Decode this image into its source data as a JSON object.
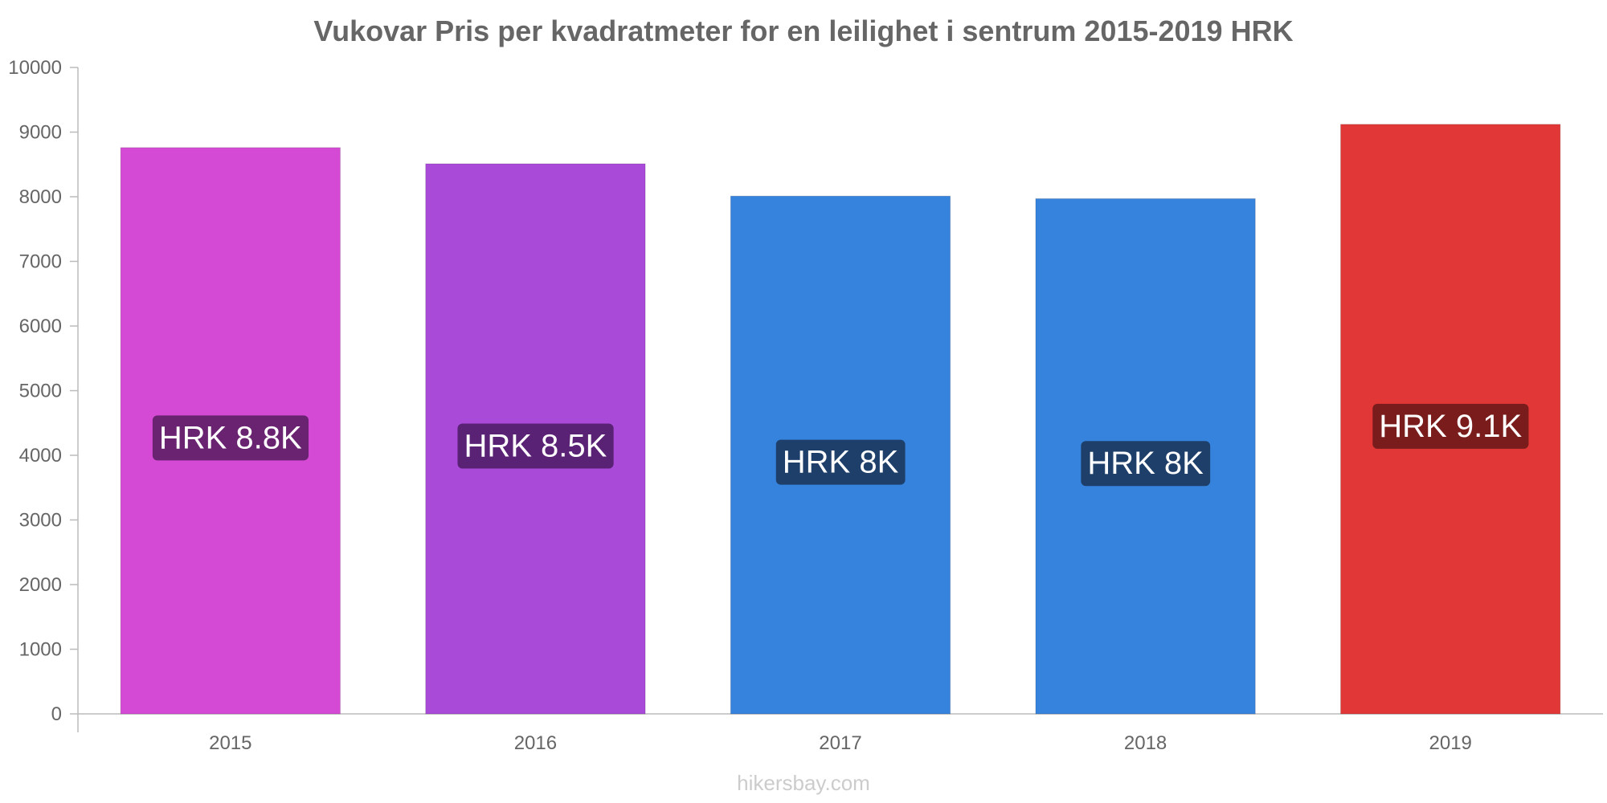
{
  "chart_data": {
    "type": "bar",
    "title": "Vukovar Pris per kvadratmeter for en leilighet i sentrum 2015-2019 HRK",
    "categories": [
      "2015",
      "2016",
      "2017",
      "2018",
      "2019"
    ],
    "values": [
      8760,
      8510,
      8010,
      7970,
      9120
    ],
    "data_labels": [
      "HRK 8.8K",
      "HRK 8.5K",
      "HRK 8K",
      "HRK 8K",
      "HRK 9.1K"
    ],
    "bar_colors": [
      "#d54ad5",
      "#a94ad9",
      "#3683de",
      "#3683de",
      "#e23737"
    ],
    "label_bg_colors": [
      "#6a2370",
      "#5a2275",
      "#1d3f6a",
      "#1d3f6a",
      "#7a1c1c"
    ],
    "xlabel": "",
    "ylabel": "",
    "ylim": [
      0,
      10000
    ],
    "yticks": [
      0,
      1000,
      2000,
      3000,
      4000,
      5000,
      6000,
      7000,
      8000,
      9000,
      10000
    ],
    "grid": false,
    "legend": "none"
  },
  "watermark": "hikersbay.com"
}
